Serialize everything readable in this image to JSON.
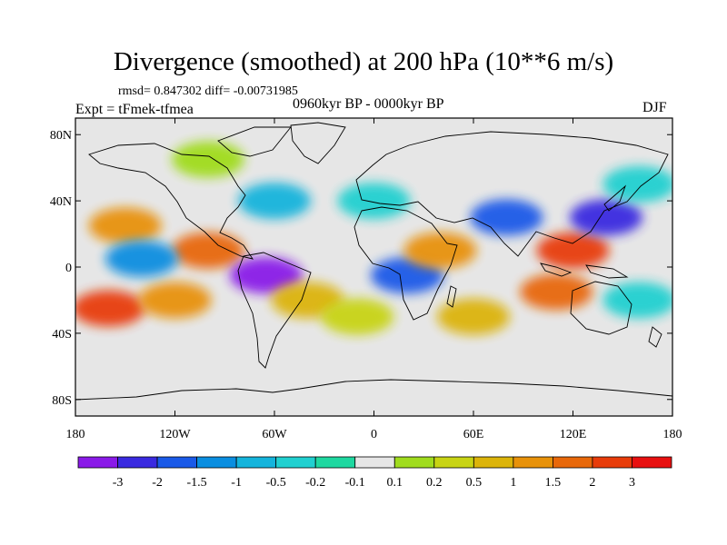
{
  "title": "Divergence (smoothed) at 200 hPa (10**6 m/s)",
  "stats": "rmsd= 0.847302 diff= -0.00731985",
  "experiment": "Expt = tFmek-tfmea",
  "period": "0960kyr BP - 0000kyr BP",
  "season": "DJF",
  "map": {
    "lon_range": [
      -180,
      180
    ],
    "lat_range": [
      -90,
      90
    ],
    "lat_ticks": [
      {
        "value": 80,
        "label": "80N"
      },
      {
        "value": 40,
        "label": "40N"
      },
      {
        "value": 0,
        "label": "0"
      },
      {
        "value": -40,
        "label": "40S"
      },
      {
        "value": -80,
        "label": "80S"
      }
    ],
    "lon_ticks": [
      {
        "value": -180,
        "label": "180"
      },
      {
        "value": -120,
        "label": "120W"
      },
      {
        "value": -60,
        "label": "60W"
      },
      {
        "value": 0,
        "label": "0"
      },
      {
        "value": 60,
        "label": "60E"
      },
      {
        "value": 120,
        "label": "120E"
      },
      {
        "value": 180,
        "label": "180"
      }
    ],
    "background_color": "#e6e6e6"
  },
  "colorbar": {
    "colors": [
      "#8a1ae8",
      "#3a2ae0",
      "#1a5ae8",
      "#0a8ee0",
      "#14b4dc",
      "#20d0d0",
      "#1ed8a0",
      "#e6e6e6",
      "#a0dc1e",
      "#c8d414",
      "#dcb40a",
      "#e8920a",
      "#e8680a",
      "#e83c0a",
      "#e81010"
    ],
    "labels": [
      "-3",
      "-2",
      "-1.5",
      "-1",
      "-0.5",
      "-0.2",
      "-0.1",
      "0.1",
      "0.2",
      "0.5",
      "1",
      "1.5",
      "2",
      "3"
    ]
  },
  "anomalies": [
    {
      "lon": -150,
      "lat": 25,
      "level": 11
    },
    {
      "lon": -100,
      "lat": 10,
      "level": 12
    },
    {
      "lon": -160,
      "lat": -25,
      "level": 13
    },
    {
      "lon": -120,
      "lat": -20,
      "level": 11
    },
    {
      "lon": -65,
      "lat": -5,
      "level": 0
    },
    {
      "lon": -140,
      "lat": 5,
      "level": 3
    },
    {
      "lon": -40,
      "lat": -20,
      "level": 10
    },
    {
      "lon": -60,
      "lat": 40,
      "level": 4
    },
    {
      "lon": 20,
      "lat": -5,
      "level": 2
    },
    {
      "lon": 40,
      "lat": 10,
      "level": 11
    },
    {
      "lon": 80,
      "lat": 30,
      "level": 2
    },
    {
      "lon": 120,
      "lat": 10,
      "level": 13
    },
    {
      "lon": 110,
      "lat": -15,
      "level": 12
    },
    {
      "lon": 140,
      "lat": 30,
      "level": 1
    },
    {
      "lon": 160,
      "lat": -20,
      "level": 5
    },
    {
      "lon": 0,
      "lat": 40,
      "level": 5
    },
    {
      "lon": -100,
      "lat": 65,
      "level": 8
    },
    {
      "lon": 160,
      "lat": 50,
      "level": 5
    },
    {
      "lon": -10,
      "lat": -30,
      "level": 9
    },
    {
      "lon": 60,
      "lat": -30,
      "level": 10
    }
  ]
}
